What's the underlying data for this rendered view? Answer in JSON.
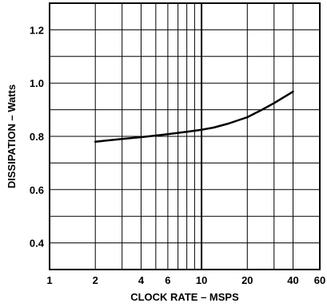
{
  "chart_data": {
    "type": "line",
    "title": "",
    "xlabel": "CLOCK RATE – MSPS",
    "ylabel": "DISSIPATION – Watts",
    "x_scale": "log",
    "xlim": [
      1,
      60
    ],
    "ylim": [
      0.3,
      1.3
    ],
    "grid": true,
    "x_ticks": [
      1,
      2,
      4,
      6,
      10,
      20,
      40,
      60
    ],
    "x_tick_labels": [
      "1",
      "2",
      "4",
      "6",
      "10",
      "20",
      "40",
      "60"
    ],
    "y_ticks": [
      0.4,
      0.6,
      0.8,
      1.0,
      1.2
    ],
    "y_tick_labels": [
      "0.4",
      "0.6",
      "0.8",
      "1.0",
      "1.2"
    ],
    "x_grid": [
      2,
      3,
      4,
      5,
      6,
      7,
      8,
      9,
      10,
      20,
      30,
      40
    ],
    "y_grid": [
      0.4,
      0.5,
      0.6,
      0.7,
      0.8,
      0.9,
      1.0,
      1.1,
      1.2
    ],
    "series": [
      {
        "x": [
          2,
          3,
          4,
          5,
          6,
          8,
          10,
          12,
          15,
          20,
          25,
          30,
          40
        ],
        "y": [
          0.78,
          0.79,
          0.797,
          0.803,
          0.808,
          0.817,
          0.825,
          0.833,
          0.848,
          0.872,
          0.9,
          0.925,
          0.968
        ]
      }
    ]
  }
}
